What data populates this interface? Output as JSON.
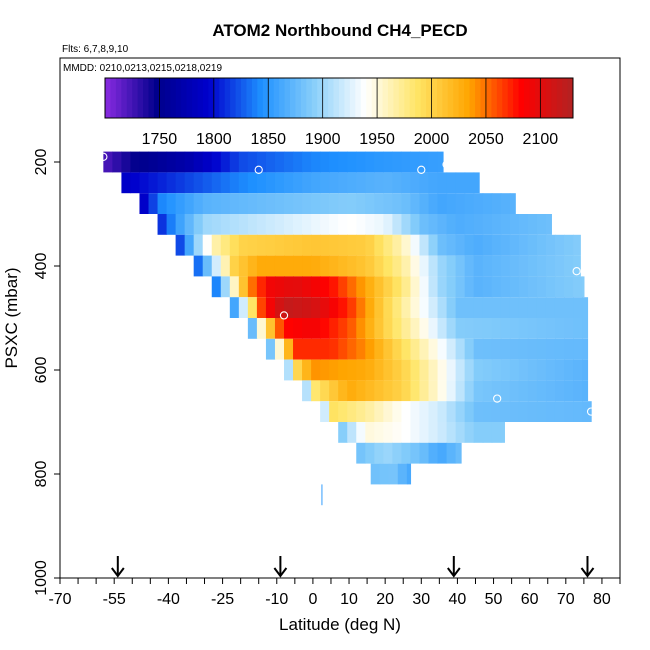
{
  "chart_data": {
    "type": "heatmap",
    "title": "ATOM2 Northbound CH4_PECD",
    "note_flights": "Flts: 6,7,8,9,10",
    "note_dates": "MMDD: 0210,0213,0215,0218,0219",
    "xlabel": "Latitude (deg N)",
    "ylabel": "PSXC (mbar)",
    "xlim": [
      -70,
      85
    ],
    "ylim": [
      1000,
      0
    ],
    "x_ticks": [
      -70,
      -55,
      -40,
      -25,
      -10,
      0,
      10,
      20,
      30,
      40,
      50,
      60,
      70,
      80
    ],
    "x_tick_labels": [
      "-70",
      "-55",
      "-40",
      "-25",
      "-10",
      "0",
      "10",
      "20",
      "30",
      "40",
      "50",
      "60",
      "70",
      "80"
    ],
    "x_minor_step": 5,
    "y_ticks": [
      200,
      400,
      600,
      800,
      1000
    ],
    "y_tick_labels": [
      "200",
      "400",
      "600",
      "800",
      "1000"
    ],
    "colorbar": {
      "min": 1700,
      "max": 2130,
      "ticks": [
        1750,
        1800,
        1850,
        1900,
        1950,
        2000,
        2050,
        2100
      ],
      "tick_labels": [
        "1750",
        "1800",
        "1850",
        "1900",
        "1950",
        "2000",
        "2050",
        "2100"
      ],
      "colors": [
        "#8a2be2",
        "#00008b",
        "#0000cd",
        "#1e90ff",
        "#87cefa",
        "#ffffff",
        "#ffe566",
        "#ffa500",
        "#ff0000",
        "#b22222"
      ]
    },
    "profile_arrows_lat": [
      -54,
      -9,
      39,
      76
    ],
    "bands": [
      {
        "p": 200,
        "lat0": -58,
        "lat1": 36,
        "knots": [
          [
            -58,
            1720
          ],
          [
            -50,
            1745
          ],
          [
            -35,
            1770
          ],
          [
            -20,
            1820
          ],
          [
            0,
            1840
          ],
          [
            20,
            1850
          ],
          [
            36,
            1855
          ]
        ]
      },
      {
        "p": 240,
        "lat0": -53,
        "lat1": 46,
        "knots": [
          [
            -53,
            1790
          ],
          [
            -40,
            1810
          ],
          [
            -20,
            1840
          ],
          [
            0,
            1860
          ],
          [
            20,
            1870
          ],
          [
            35,
            1860
          ],
          [
            46,
            1860
          ]
        ]
      },
      {
        "p": 280,
        "lat0": -48,
        "lat1": 56,
        "knots": [
          [
            -48,
            1780
          ],
          [
            -42,
            1840
          ],
          [
            -30,
            1870
          ],
          [
            -10,
            1880
          ],
          [
            10,
            1890
          ],
          [
            25,
            1880
          ],
          [
            35,
            1860
          ],
          [
            56,
            1870
          ]
        ]
      },
      {
        "p": 320,
        "lat0": -43,
        "lat1": 66,
        "knots": [
          [
            -43,
            1800
          ],
          [
            -38,
            1850
          ],
          [
            -30,
            1900
          ],
          [
            -10,
            1920
          ],
          [
            10,
            1940
          ],
          [
            20,
            1930
          ],
          [
            30,
            1880
          ],
          [
            40,
            1865
          ],
          [
            66,
            1880
          ]
        ]
      },
      {
        "p": 360,
        "lat0": -38,
        "lat1": 74,
        "knots": [
          [
            -38,
            1800
          ],
          [
            -33,
            1880
          ],
          [
            -28,
            1960
          ],
          [
            -20,
            2000
          ],
          [
            0,
            2010
          ],
          [
            15,
            2005
          ],
          [
            25,
            1960
          ],
          [
            35,
            1880
          ],
          [
            45,
            1865
          ],
          [
            74,
            1890
          ]
        ]
      },
      {
        "p": 400,
        "lat0": -33,
        "lat1": 74,
        "knots": [
          [
            -33,
            1810
          ],
          [
            -28,
            1900
          ],
          [
            -22,
            2000
          ],
          [
            -15,
            2030
          ],
          [
            0,
            2030
          ],
          [
            15,
            2010
          ],
          [
            25,
            1970
          ],
          [
            35,
            1900
          ],
          [
            45,
            1870
          ],
          [
            74,
            1890
          ]
        ]
      },
      {
        "p": 440,
        "lat0": -28,
        "lat1": 75,
        "knots": [
          [
            -28,
            1810
          ],
          [
            -23,
            1930
          ],
          [
            -18,
            2040
          ],
          [
            -12,
            2090
          ],
          [
            -5,
            2100
          ],
          [
            5,
            2080
          ],
          [
            15,
            2030
          ],
          [
            25,
            1980
          ],
          [
            35,
            1900
          ],
          [
            45,
            1870
          ],
          [
            75,
            1890
          ]
        ]
      },
      {
        "p": 480,
        "lat0": -23,
        "lat1": 76,
        "knots": [
          [
            -23,
            1830
          ],
          [
            -18,
            1950
          ],
          [
            -14,
            2070
          ],
          [
            -8,
            2120
          ],
          [
            0,
            2110
          ],
          [
            10,
            2070
          ],
          [
            20,
            2000
          ],
          [
            30,
            1940
          ],
          [
            40,
            1880
          ],
          [
            76,
            1880
          ]
        ]
      },
      {
        "p": 520,
        "lat0": -18,
        "lat1": 76,
        "knots": [
          [
            -18,
            1840
          ],
          [
            -13,
            1990
          ],
          [
            -8,
            2080
          ],
          [
            0,
            2090
          ],
          [
            10,
            2060
          ],
          [
            20,
            2000
          ],
          [
            30,
            1950
          ],
          [
            40,
            1890
          ],
          [
            76,
            1880
          ]
        ]
      },
      {
        "p": 560,
        "lat0": -13,
        "lat1": 76,
        "knots": [
          [
            -13,
            1850
          ],
          [
            -9,
            1960
          ],
          [
            -5,
            2070
          ],
          [
            5,
            2070
          ],
          [
            15,
            2040
          ],
          [
            25,
            1990
          ],
          [
            35,
            1940
          ],
          [
            45,
            1880
          ],
          [
            76,
            1875
          ]
        ]
      },
      {
        "p": 600,
        "lat0": -8,
        "lat1": 76,
        "knots": [
          [
            -8,
            1850
          ],
          [
            -5,
            1990
          ],
          [
            0,
            2040
          ],
          [
            15,
            2030
          ],
          [
            25,
            2000
          ],
          [
            35,
            1950
          ],
          [
            45,
            1890
          ],
          [
            76,
            1870
          ]
        ]
      },
      {
        "p": 640,
        "lat0": -3,
        "lat1": 76,
        "knots": [
          [
            -3,
            1860
          ],
          [
            0,
            1980
          ],
          [
            10,
            2030
          ],
          [
            25,
            2000
          ],
          [
            35,
            1950
          ],
          [
            45,
            1885
          ],
          [
            76,
            1870
          ]
        ]
      },
      {
        "p": 680,
        "lat0": 2,
        "lat1": 77,
        "knots": [
          [
            2,
            1870
          ],
          [
            5,
            1990
          ],
          [
            15,
            1970
          ],
          [
            25,
            1940
          ],
          [
            35,
            1920
          ],
          [
            45,
            1880
          ],
          [
            77,
            1875
          ]
        ]
      },
      {
        "p": 720,
        "lat0": 7,
        "lat1": 53,
        "knots": [
          [
            7,
            1880
          ],
          [
            15,
            1950
          ],
          [
            25,
            1940
          ],
          [
            35,
            1920
          ],
          [
            45,
            1890
          ],
          [
            53,
            1890
          ]
        ]
      },
      {
        "p": 760,
        "lat0": 12,
        "lat1": 41,
        "knots": [
          [
            12,
            1880
          ],
          [
            20,
            1900
          ],
          [
            30,
            1880
          ],
          [
            35,
            1860
          ],
          [
            41,
            1880
          ]
        ]
      },
      {
        "p": 800,
        "lat0": 16,
        "lat1": 27,
        "knots": [
          [
            16,
            1880
          ],
          [
            22,
            1885
          ],
          [
            27,
            1860
          ]
        ]
      }
    ],
    "narrow_strip": {
      "lat": 2.5,
      "p_top": 820,
      "p_bottom": 860,
      "value": 1860
    },
    "markers": [
      {
        "lat": -58,
        "p": 190
      },
      {
        "lat": -15,
        "p": 215
      },
      {
        "lat": 30,
        "p": 215
      },
      {
        "lat": 37,
        "p": 205
      },
      {
        "lat": -8,
        "p": 495
      },
      {
        "lat": 51,
        "p": 655
      },
      {
        "lat": 77,
        "p": 680
      },
      {
        "lat": 73,
        "p": 410
      }
    ]
  }
}
